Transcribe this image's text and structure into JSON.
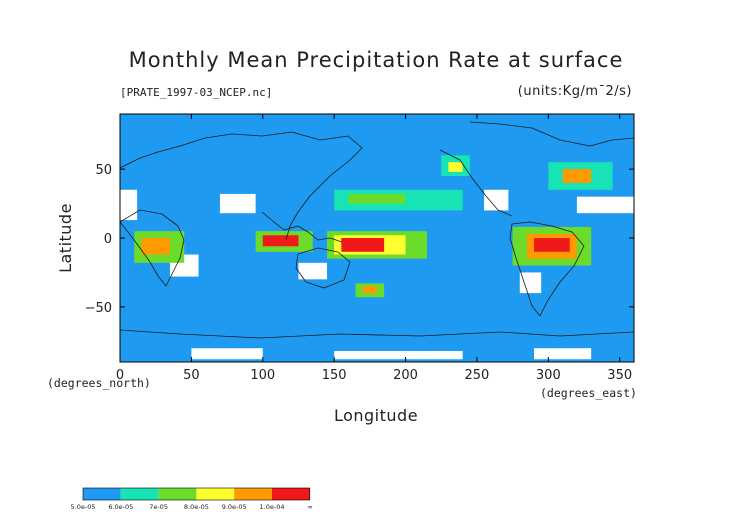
{
  "chart_data": {
    "type": "heatmap",
    "title": "Monthly Mean Precipitation Rate at surface",
    "source_label": "[PRATE_1997-03_NCEP.nc]",
    "units_label": "(units:Kg/m¯2/s)",
    "xlabel": "Longitude",
    "ylabel": "Latitude",
    "x_unit_label": "(degrees_east)",
    "y_unit_label": "(degrees_north)",
    "xlim": [
      0,
      360
    ],
    "ylim": [
      -90,
      90
    ],
    "x_ticks": [
      "0",
      "50",
      "100",
      "150",
      "200",
      "250",
      "300",
      "350"
    ],
    "x_tick_values": [
      0,
      50,
      100,
      150,
      200,
      250,
      300,
      350
    ],
    "y_ticks": [
      "50",
      "0",
      "−50"
    ],
    "y_tick_values": [
      50,
      0,
      -50
    ],
    "colorbar": {
      "colors": [
        "#1e9bf0",
        "#17e3b5",
        "#6bdc2a",
        "#ffff30",
        "#ff9a00",
        "#f01818"
      ],
      "labels": [
        "5.0e-05",
        "6.0e-05",
        "7e-05",
        "8.0e-05",
        "9.0e-05",
        "1.0e-04",
        "∞"
      ]
    },
    "below_min_color": "#ffffff",
    "background_level_color": "#1e9bf0",
    "regions": [
      {
        "level": 0,
        "lon": [
          0,
          360
        ],
        "lat": [
          -90,
          90
        ]
      },
      {
        "level": -1,
        "lon": [
          0,
          12
        ],
        "lat": [
          13,
          35
        ]
      },
      {
        "level": -1,
        "lon": [
          35,
          55
        ],
        "lat": [
          -28,
          -12
        ]
      },
      {
        "level": -1,
        "lon": [
          70,
          95
        ],
        "lat": [
          18,
          32
        ]
      },
      {
        "level": -1,
        "lon": [
          125,
          145
        ],
        "lat": [
          -30,
          -18
        ]
      },
      {
        "level": -1,
        "lon": [
          255,
          272
        ],
        "lat": [
          20,
          35
        ]
      },
      {
        "level": -1,
        "lon": [
          280,
          295
        ],
        "lat": [
          -40,
          -25
        ]
      },
      {
        "level": -1,
        "lon": [
          320,
          360
        ],
        "lat": [
          18,
          30
        ]
      },
      {
        "level": -1,
        "lon": [
          50,
          100
        ],
        "lat": [
          -88,
          -80
        ]
      },
      {
        "level": -1,
        "lon": [
          150,
          240
        ],
        "lat": [
          -88,
          -82
        ]
      },
      {
        "level": -1,
        "lon": [
          290,
          330
        ],
        "lat": [
          -88,
          -80
        ]
      },
      {
        "level": 2,
        "lon": [
          145,
          215
        ],
        "lat": [
          -15,
          5
        ]
      },
      {
        "level": 3,
        "lon": [
          150,
          200
        ],
        "lat": [
          -12,
          2
        ]
      },
      {
        "level": 5,
        "lon": [
          155,
          185
        ],
        "lat": [
          -10,
          0
        ]
      },
      {
        "level": 2,
        "lon": [
          275,
          330
        ],
        "lat": [
          -20,
          8
        ]
      },
      {
        "level": 4,
        "lon": [
          285,
          320
        ],
        "lat": [
          -15,
          3
        ]
      },
      {
        "level": 5,
        "lon": [
          290,
          315
        ],
        "lat": [
          -10,
          0
        ]
      },
      {
        "level": 2,
        "lon": [
          10,
          45
        ],
        "lat": [
          -18,
          5
        ]
      },
      {
        "level": 4,
        "lon": [
          15,
          35
        ],
        "lat": [
          -12,
          0
        ]
      },
      {
        "level": 2,
        "lon": [
          95,
          135
        ],
        "lat": [
          -10,
          5
        ]
      },
      {
        "level": 5,
        "lon": [
          100,
          125
        ],
        "lat": [
          -6,
          2
        ]
      },
      {
        "level": 1,
        "lon": [
          150,
          240
        ],
        "lat": [
          20,
          35
        ]
      },
      {
        "level": 2,
        "lon": [
          160,
          200
        ],
        "lat": [
          25,
          32
        ]
      },
      {
        "level": 1,
        "lon": [
          300,
          345
        ],
        "lat": [
          35,
          55
        ]
      },
      {
        "level": 4,
        "lon": [
          310,
          330
        ],
        "lat": [
          40,
          50
        ]
      },
      {
        "level": 1,
        "lon": [
          225,
          245
        ],
        "lat": [
          45,
          60
        ]
      },
      {
        "level": 3,
        "lon": [
          230,
          240
        ],
        "lat": [
          48,
          55
        ]
      },
      {
        "level": 2,
        "lon": [
          165,
          185
        ],
        "lat": [
          -43,
          -33
        ]
      },
      {
        "level": 4,
        "lon": [
          170,
          180
        ],
        "lat": [
          -40,
          -35
        ]
      }
    ]
  }
}
